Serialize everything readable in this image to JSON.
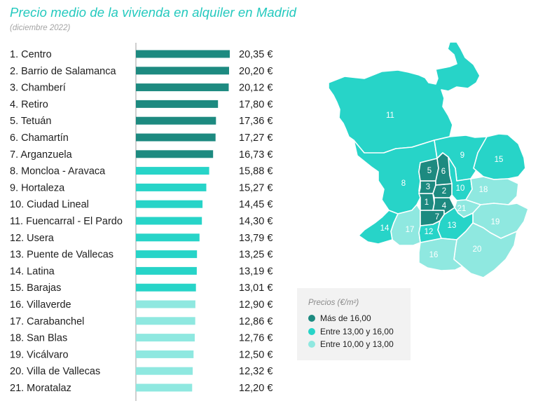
{
  "header": {
    "title": "Precio medio de la vivienda en alquiler en Madrid",
    "subtitle": "(diciembre 2022)"
  },
  "colors": {
    "high": "#1d8a80",
    "medium": "#27d4c8",
    "low": "#8fe8e0",
    "axis": "#bfbfbf"
  },
  "legend": {
    "title": "Precios (€/m²)",
    "items": [
      {
        "label": "Más de 16,00",
        "level": "high"
      },
      {
        "label": "Entre 13,00 y 16,00",
        "level": "medium"
      },
      {
        "label": "Entre 10,00 y 13,00",
        "level": "low"
      }
    ]
  },
  "chart_data": {
    "type": "bar",
    "orientation": "horizontal",
    "categories": [
      "1. Centro",
      "2. Barrio de Salamanca",
      "3. Chamberí",
      "4. Retiro",
      "5. Tetuán",
      "6. Chamartín",
      "7. Arganzuela",
      "8. Moncloa - Aravaca",
      "9. Hortaleza",
      "10. Ciudad Lineal",
      "11. Fuencarral - El Pardo",
      "12. Usera",
      "13. Puente de Vallecas",
      "14. Latina",
      "15. Barajas",
      "16. Villaverde",
      "17. Carabanchel",
      "18. San Blas",
      "19. Vicálvaro",
      "20. Villa de Vallecas",
      "21. Moratalaz"
    ],
    "values": [
      20.35,
      20.2,
      20.12,
      17.8,
      17.36,
      17.27,
      16.73,
      15.88,
      15.27,
      14.45,
      14.3,
      13.79,
      13.25,
      13.19,
      13.01,
      12.9,
      12.86,
      12.76,
      12.5,
      12.32,
      12.2
    ],
    "value_labels": [
      "20,35 €",
      "20,20 €",
      "20,12 €",
      "17,80 €",
      "17,36 €",
      "17,27 €",
      "16,73 €",
      "15,88 €",
      "15,27 €",
      "14,45 €",
      "14,30 €",
      "13,79 €",
      "13,25 €",
      "13,19 €",
      "13,01 €",
      "12,90 €",
      "12,86 €",
      "12,76 €",
      "12,50 €",
      "12,32 €",
      "12,20 €"
    ],
    "levels": [
      "high",
      "high",
      "high",
      "high",
      "high",
      "high",
      "high",
      "medium",
      "medium",
      "medium",
      "medium",
      "medium",
      "medium",
      "medium",
      "medium",
      "low",
      "low",
      "low",
      "low",
      "low",
      "low"
    ],
    "xlim": [
      0,
      20.35
    ]
  },
  "map": {
    "districts": [
      {
        "label": "1",
        "level": "high"
      },
      {
        "label": "2",
        "level": "high"
      },
      {
        "label": "3",
        "level": "high"
      },
      {
        "label": "4",
        "level": "high"
      },
      {
        "label": "5",
        "level": "high"
      },
      {
        "label": "6",
        "level": "high"
      },
      {
        "label": "7",
        "level": "high"
      },
      {
        "label": "8",
        "level": "medium"
      },
      {
        "label": "9",
        "level": "medium"
      },
      {
        "label": "10",
        "level": "medium"
      },
      {
        "label": "11",
        "level": "medium"
      },
      {
        "label": "12",
        "level": "medium"
      },
      {
        "label": "13",
        "level": "medium"
      },
      {
        "label": "14",
        "level": "medium"
      },
      {
        "label": "15",
        "level": "medium"
      },
      {
        "label": "16",
        "level": "low"
      },
      {
        "label": "17",
        "level": "low"
      },
      {
        "label": "18",
        "level": "low"
      },
      {
        "label": "19",
        "level": "low"
      },
      {
        "label": "20",
        "level": "low"
      },
      {
        "label": "21",
        "level": "low"
      }
    ]
  }
}
